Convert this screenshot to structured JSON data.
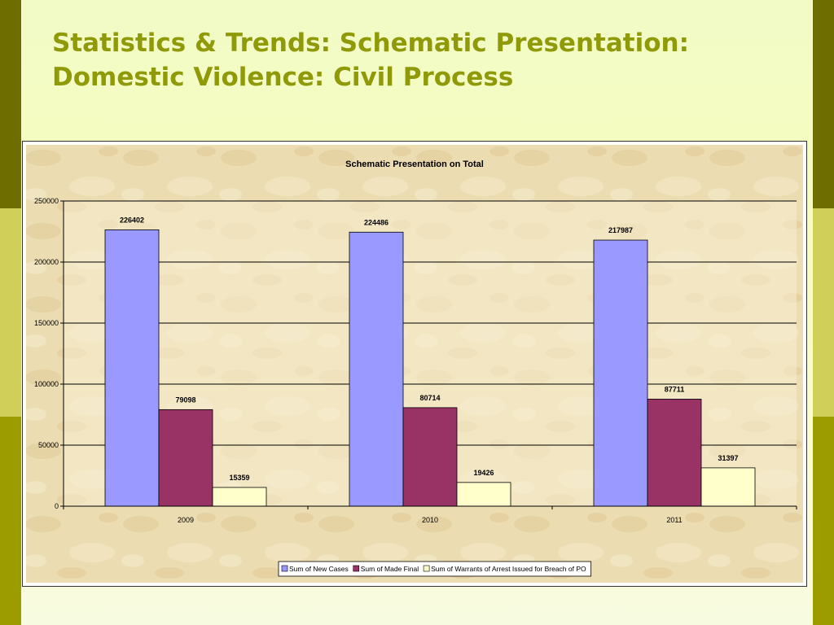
{
  "slide": {
    "title_line1": "Statistics & Trends: Schematic Presentation:",
    "title_line2": "Domestic Violence: Civil Process"
  },
  "colors": {
    "title": "#8f9a08",
    "band_dark": "#6e6d00",
    "band_light": "#cfcf5a",
    "band_olive": "#9c9c00"
  },
  "chart_data": {
    "type": "bar",
    "title": "Schematic Presentation on Total",
    "xlabel": "",
    "ylabel": "",
    "categories": [
      "2009",
      "2010",
      "2011"
    ],
    "series": [
      {
        "name": "Sum of New Cases",
        "values": [
          226402,
          224486,
          217987
        ],
        "color": "#9999ff"
      },
      {
        "name": "Sum of Made Final",
        "values": [
          79098,
          80714,
          87711
        ],
        "color": "#993366"
      },
      {
        "name": "Sum of  Warrants of Arrest Issued for Breach of PO",
        "values": [
          15359,
          19426,
          31397
        ],
        "color": "#ffffcc"
      }
    ],
    "ylim": [
      0,
      250000
    ],
    "yticks": [
      0,
      50000,
      100000,
      150000,
      200000,
      250000
    ],
    "grid": true,
    "data_labels": true,
    "legend_position": "bottom"
  }
}
